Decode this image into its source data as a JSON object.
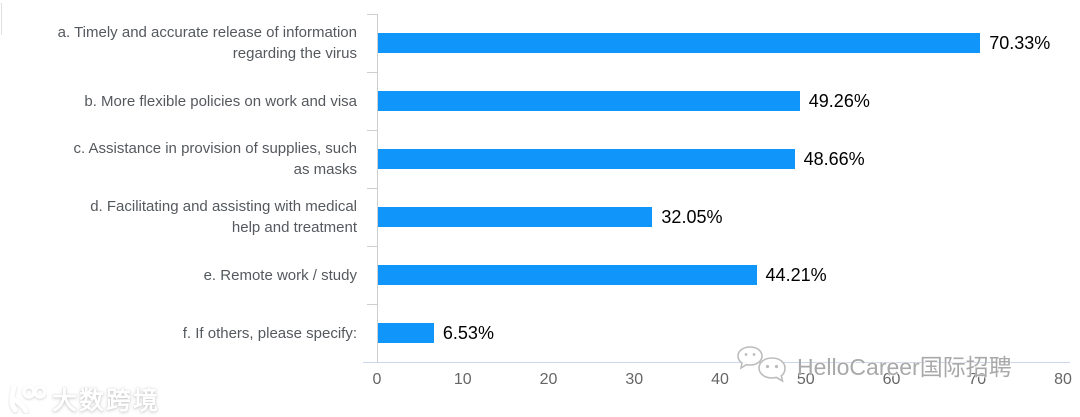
{
  "chart_data": {
    "type": "bar",
    "orientation": "horizontal",
    "title": "",
    "xlabel": "",
    "ylabel": "",
    "categories": [
      "a. Timely and accurate release of information regarding the virus",
      "b. More flexible policies on work and visa",
      "c. Assistance in provision of supplies, such as masks",
      "d. Facilitating and assisting with medical help and treatment",
      "e. Remote work / study",
      "f. If others, please specify:"
    ],
    "label_lines": [
      [
        "a. Timely and accurate release of information",
        "regarding the virus"
      ],
      [
        "b. More flexible policies on work and visa"
      ],
      [
        "c. Assistance in provision of supplies, such",
        "as masks"
      ],
      [
        "d. Facilitating and assisting with medical",
        "help and treatment"
      ],
      [
        "e. Remote work / study"
      ],
      [
        "f. If others, please specify:"
      ]
    ],
    "values": [
      70.33,
      49.26,
      48.66,
      32.05,
      44.21,
      6.53
    ],
    "value_labels": [
      "70.33%",
      "49.26%",
      "48.66%",
      "32.05%",
      "44.21%",
      "6.53%"
    ],
    "xlim": [
      0,
      80
    ],
    "x_tick_labels": [
      "0",
      "10",
      "20",
      "30",
      "40",
      "50",
      "60",
      "70",
      "80"
    ],
    "grid": false,
    "legend": null,
    "bar_color": "#1096fa"
  },
  "colors": {
    "bar": "#1096fa",
    "category_label": "#55595e",
    "value_label": "#000000",
    "axis_line": "#ccd6eb",
    "tick_line": "#cfcfcf",
    "tick_label": "#666666"
  },
  "watermarks": {
    "bottom_left": {
      "logo": "k100-logo",
      "text": "大数跨境"
    },
    "bottom_right": {
      "icon": "wechat-bubbles-icon",
      "text": "HelloCareer国际招聘"
    }
  }
}
